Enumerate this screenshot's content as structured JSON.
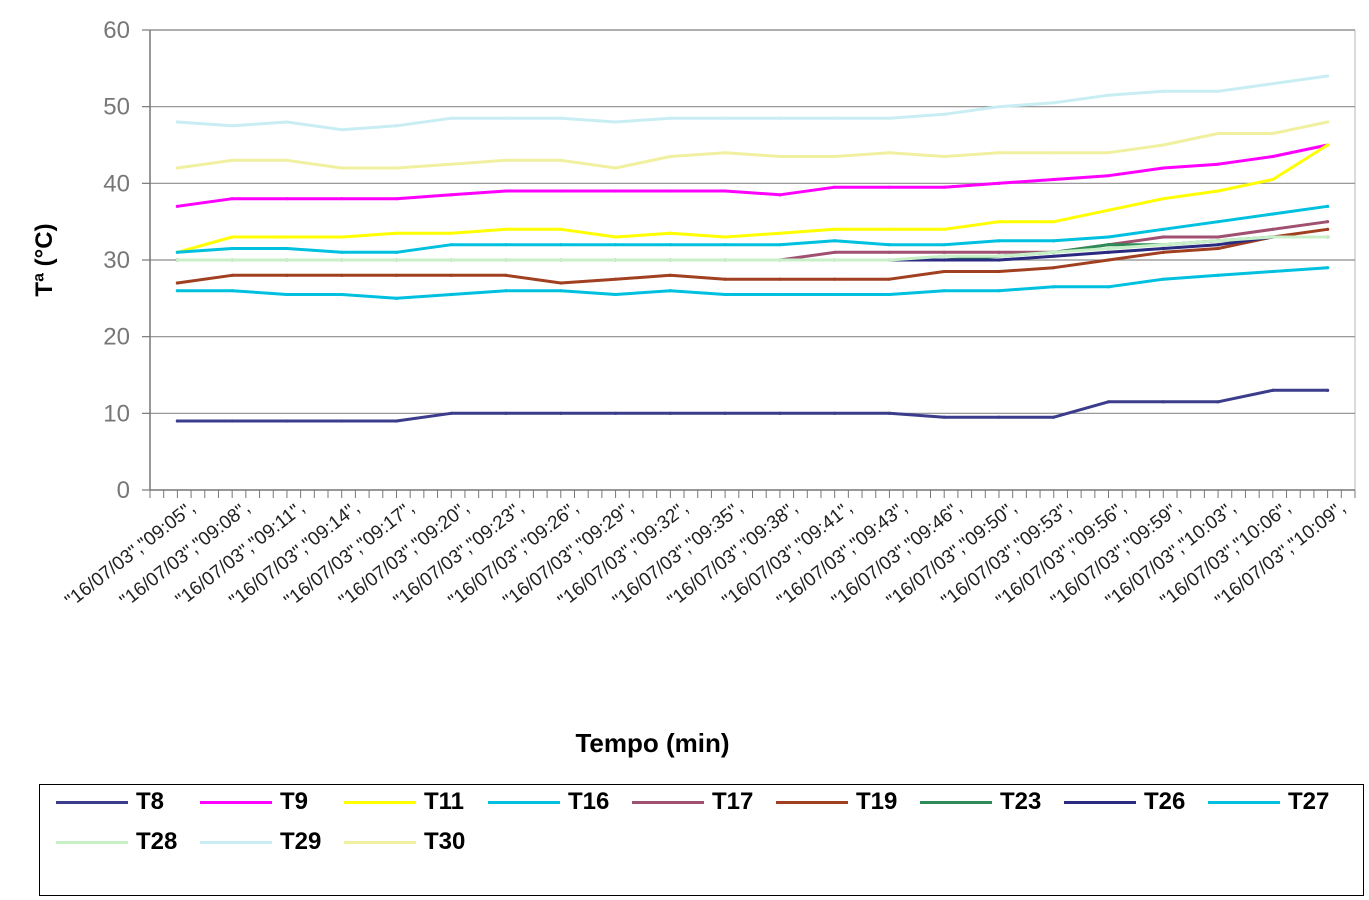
{
  "chart_data": {
    "type": "line",
    "title": "",
    "xlabel": "Tempo (min)",
    "ylabel": "Tª (°C)",
    "ylim": [
      0,
      60
    ],
    "yticks": [
      0,
      10,
      20,
      30,
      40,
      50,
      60
    ],
    "grid": true,
    "legend_position": "bottom",
    "categories": [
      "\"16/07/03\",\"09:05\",",
      "\"16/07/03\",\"09:08\",",
      "\"16/07/03\",\"09:11\",",
      "\"16/07/03\",\"09:14\",",
      "\"16/07/03\",\"09:17\",",
      "\"16/07/03\",\"09:20\",",
      "\"16/07/03\",\"09:23\",",
      "\"16/07/03\",\"09:26\",",
      "\"16/07/03\",\"09:29\",",
      "\"16/07/03\",\"09:32\",",
      "\"16/07/03\",\"09:35\",",
      "\"16/07/03\",\"09:38\",",
      "\"16/07/03\",\"09:41\",",
      "\"16/07/03\",\"09:43\",",
      "\"16/07/03\",\"09:46\",",
      "\"16/07/03\",\"09:50\",",
      "\"16/07/03\",\"09:53\",",
      "\"16/07/03\",\"09:56\",",
      "\"16/07/03\",\"09:59\",",
      "\"16/07/03\",\"10:03\",",
      "\"16/07/03\",\"10:06\",",
      "\"16/07/03\",\"10:09\","
    ],
    "series": [
      {
        "name": "T8",
        "color": "#3c3c8c",
        "values": [
          9,
          9,
          9,
          9,
          9,
          10,
          10,
          10,
          10,
          10,
          10,
          10,
          10,
          10,
          9.5,
          9.5,
          9.5,
          11.5,
          11.5,
          11.5,
          13,
          13
        ]
      },
      {
        "name": "T9",
        "color": "#ff00ff",
        "values": [
          37,
          38,
          38,
          38,
          38,
          38.5,
          39,
          39,
          39,
          39,
          39,
          38.5,
          39.5,
          39.5,
          39.5,
          40,
          40.5,
          41,
          42,
          42.5,
          43.5,
          45
        ]
      },
      {
        "name": "T11",
        "color": "#ffff00",
        "values": [
          31,
          33,
          33,
          33,
          33.5,
          33.5,
          34,
          34,
          33,
          33.5,
          33,
          33.5,
          34,
          34,
          34,
          35,
          35,
          36.5,
          38,
          39,
          40.5,
          45
        ]
      },
      {
        "name": "T16",
        "color": "#00c0e0",
        "values": [
          31,
          31.5,
          31.5,
          31,
          31,
          32,
          32,
          32,
          32,
          32,
          32,
          32,
          32.5,
          32,
          32,
          32.5,
          32.5,
          33,
          34,
          35,
          36,
          37
        ]
      },
      {
        "name": "T17",
        "color": "#a05070",
        "values": [
          30,
          30,
          30,
          30,
          30,
          30,
          30,
          30,
          30,
          30,
          30,
          30,
          31,
          31,
          31,
          31,
          31,
          32,
          33,
          33,
          34,
          35
        ]
      },
      {
        "name": "T19",
        "color": "#a04020",
        "values": [
          27,
          28,
          28,
          28,
          28,
          28,
          28,
          27,
          27.5,
          28,
          27.5,
          27.5,
          27.5,
          27.5,
          28.5,
          28.5,
          29,
          30,
          31,
          31.5,
          33,
          34
        ]
      },
      {
        "name": "T23",
        "color": "#2e8b57",
        "values": [
          30,
          30,
          30,
          30,
          30,
          30,
          30,
          30,
          30,
          30,
          30,
          30,
          30,
          30,
          30,
          30.5,
          31,
          32,
          32,
          32.5,
          33,
          33
        ]
      },
      {
        "name": "T26",
        "color": "#2a2a80",
        "values": [
          30,
          30,
          30,
          30,
          30,
          30,
          30,
          30,
          30,
          30,
          30,
          30,
          30,
          30,
          30,
          30,
          30.5,
          31,
          31.5,
          32,
          33,
          33
        ]
      },
      {
        "name": "T27",
        "color": "#00c0e0",
        "values": [
          26,
          26,
          25.5,
          25.5,
          25,
          25.5,
          26,
          26,
          25.5,
          26,
          25.5,
          25.5,
          25.5,
          25.5,
          26,
          26,
          26.5,
          26.5,
          27.5,
          28,
          28.5,
          29
        ]
      },
      {
        "name": "T28",
        "color": "#c8f0c8",
        "values": [
          30,
          30,
          30,
          30,
          30,
          30,
          30,
          30,
          30,
          30,
          30,
          30,
          30,
          30,
          30.5,
          30.5,
          31,
          31.5,
          32,
          32.5,
          33,
          33
        ]
      },
      {
        "name": "T29",
        "color": "#c8eef4",
        "values": [
          48,
          47.5,
          48,
          47,
          47.5,
          48.5,
          48.5,
          48.5,
          48,
          48.5,
          48.5,
          48.5,
          48.5,
          48.5,
          49,
          50,
          50.5,
          51.5,
          52,
          52,
          53,
          54
        ]
      },
      {
        "name": "T30",
        "color": "#f0f0a0",
        "values": [
          42,
          43,
          43,
          42,
          42,
          42.5,
          43,
          43,
          42,
          43.5,
          44,
          43.5,
          43.5,
          44,
          43.5,
          44,
          44,
          44,
          45,
          46.5,
          46.5,
          48
        ]
      }
    ]
  }
}
